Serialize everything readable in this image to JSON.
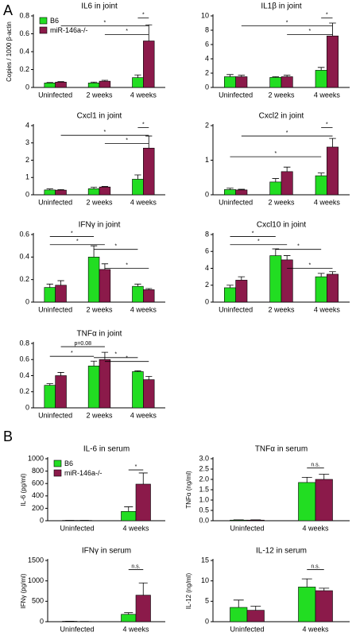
{
  "panel_labels": [
    "A",
    "B"
  ],
  "chart_data": [
    {
      "type": "bar",
      "title": "IL6 in joint",
      "y_label": "Copies / 1000 β-actin",
      "legend": true,
      "categories": [
        "Uninfected",
        "2 weeks",
        "4 weeks"
      ],
      "series": [
        {
          "name": "B6",
          "color": "#22dd22",
          "values": [
            0.05,
            0.05,
            0.11
          ],
          "errors": [
            0.005,
            0.01,
            0.03
          ]
        },
        {
          "name": "miR-146a-/-",
          "color": "#8b1a4a",
          "values": [
            0.06,
            0.07,
            0.52
          ],
          "errors": [
            0.005,
            0.01,
            0.18
          ]
        }
      ],
      "ylim": [
        0,
        0.8
      ],
      "yticks": [
        0,
        0.2,
        0.4,
        0.6,
        0.8
      ],
      "annotations": [
        "*",
        "*",
        "*"
      ]
    },
    {
      "type": "bar",
      "title": "IL1β in joint",
      "categories": [
        "Uninfected",
        "2 weeks",
        "4 weeks"
      ],
      "series": [
        {
          "color": "#22dd22",
          "values": [
            1.5,
            1.4,
            2.4
          ],
          "errors": [
            0.3,
            0.1,
            0.4
          ]
        },
        {
          "color": "#8b1a4a",
          "values": [
            1.5,
            1.5,
            7.2
          ],
          "errors": [
            0.2,
            0.2,
            1.8
          ]
        }
      ],
      "ylim": [
        0,
        10
      ],
      "yticks": [
        0,
        2,
        4,
        6,
        8,
        10
      ],
      "annotations": [
        "*",
        "*",
        "*"
      ]
    },
    {
      "type": "bar",
      "title": "Cxcl1 in joint",
      "categories": [
        "Uninfected",
        "2 weeks",
        "4 weeks"
      ],
      "series": [
        {
          "color": "#22dd22",
          "values": [
            0.28,
            0.35,
            0.9
          ],
          "errors": [
            0.06,
            0.08,
            0.25
          ]
        },
        {
          "color": "#8b1a4a",
          "values": [
            0.27,
            0.45,
            2.7
          ],
          "errors": [
            0.03,
            0.03,
            0.7
          ]
        }
      ],
      "ylim": [
        0,
        4
      ],
      "yticks": [
        0,
        1,
        2,
        3,
        4
      ],
      "annotations": [
        "*",
        "*",
        "*"
      ]
    },
    {
      "type": "bar",
      "title": "Cxcl2 in joint",
      "categories": [
        "Uninfected",
        "2 weeks",
        "4 weeks"
      ],
      "series": [
        {
          "color": "#22dd22",
          "values": [
            0.15,
            0.37,
            0.55
          ],
          "errors": [
            0.04,
            0.1,
            0.08
          ]
        },
        {
          "color": "#8b1a4a",
          "values": [
            0.14,
            0.67,
            1.38
          ],
          "errors": [
            0.02,
            0.13,
            0.25
          ]
        }
      ],
      "ylim": [
        0,
        2
      ],
      "yticks": [
        0,
        1,
        2
      ],
      "annotations": [
        "*",
        "*",
        "*"
      ]
    },
    {
      "type": "bar",
      "title": "IFNγ in joint",
      "categories": [
        "Uninfected",
        "2 weeks",
        "4 weeks"
      ],
      "series": [
        {
          "color": "#22dd22",
          "values": [
            0.13,
            0.4,
            0.14
          ],
          "errors": [
            0.03,
            0.1,
            0.02
          ]
        },
        {
          "color": "#8b1a4a",
          "values": [
            0.15,
            0.29,
            0.11
          ],
          "errors": [
            0.04,
            0.05,
            0.01
          ]
        }
      ],
      "ylim": [
        0,
        0.6
      ],
      "yticks": [
        0,
        0.2,
        0.4,
        0.6
      ],
      "annotations": [
        "*",
        "*",
        "*",
        "*"
      ]
    },
    {
      "type": "bar",
      "title": "Cxcl10 in joint",
      "categories": [
        "Uninfected",
        "2 weeks",
        "4 weeks"
      ],
      "series": [
        {
          "color": "#22dd22",
          "values": [
            1.7,
            5.5,
            3.0
          ],
          "errors": [
            0.3,
            0.8,
            0.4
          ]
        },
        {
          "color": "#8b1a4a",
          "values": [
            2.6,
            5.0,
            3.3
          ],
          "errors": [
            0.4,
            0.5,
            0.3
          ]
        }
      ],
      "ylim": [
        0,
        8
      ],
      "yticks": [
        0,
        2,
        4,
        6,
        8
      ],
      "annotations": [
        "*",
        "*",
        "*",
        "*"
      ]
    },
    {
      "type": "bar",
      "title": "TNFα in joint",
      "categories": [
        "Uninfected",
        "2 weeks",
        "4 weeks"
      ],
      "series": [
        {
          "color": "#22dd22",
          "values": [
            0.28,
            0.52,
            0.45
          ],
          "errors": [
            0.02,
            0.06,
            0.01
          ]
        },
        {
          "color": "#8b1a4a",
          "values": [
            0.4,
            0.6,
            0.35
          ],
          "errors": [
            0.04,
            0.09,
            0.04
          ]
        }
      ],
      "ylim": [
        0,
        0.8
      ],
      "yticks": [
        0,
        0.2,
        0.4,
        0.6,
        0.8
      ],
      "annotations": [
        "*",
        "p=0.08",
        "*",
        "*"
      ]
    },
    {
      "type": "bar",
      "title": "IL-6 in serum",
      "y_label": "IL-6 (pg/ml)",
      "legend": true,
      "categories": [
        "Uninfected",
        "4 weeks"
      ],
      "series": [
        {
          "name": "B6",
          "color": "#22dd22",
          "values": [
            5,
            150
          ],
          "errors": [
            0,
            75
          ]
        },
        {
          "name": "miR-146a-/-",
          "color": "#8b1a4a",
          "values": [
            5,
            590
          ],
          "errors": [
            0,
            180
          ]
        }
      ],
      "ylim": [
        0,
        1000
      ],
      "yticks": [
        0,
        200,
        400,
        600,
        800,
        1000
      ],
      "annotations": [
        "*"
      ]
    },
    {
      "type": "bar",
      "title": "TNFα in serum",
      "y_label": "TNFα (ng/ml)",
      "categories": [
        "Uninfected",
        "4 weeks"
      ],
      "series": [
        {
          "color": "#22dd22",
          "values": [
            0.03,
            1.85
          ],
          "errors": [
            0.01,
            0.25
          ]
        },
        {
          "color": "#8b1a4a",
          "values": [
            0.03,
            2.0
          ],
          "errors": [
            0.01,
            0.25
          ]
        }
      ],
      "ylim": [
        0,
        3
      ],
      "yticks": [
        {
          "value": 0,
          "label": "0.0"
        },
        0.5,
        {
          "value": 1,
          "label": "1.0"
        },
        1.5,
        {
          "value": 2,
          "label": "2.0"
        },
        2.5,
        {
          "value": 3,
          "label": "3.0"
        }
      ],
      "annotations": [
        "n.s."
      ]
    },
    {
      "type": "bar",
      "title": "IFNγ in serum",
      "y_label": "IFNγ (pg/ml)",
      "categories": [
        "Uninfected",
        "4 weeks"
      ],
      "series": [
        {
          "color": "#22dd22",
          "values": [
            10,
            180
          ],
          "errors": [
            0,
            40
          ]
        },
        {
          "color": "#8b1a4a",
          "values": [
            5,
            650
          ],
          "errors": [
            0,
            300
          ]
        }
      ],
      "ylim": [
        0,
        1500
      ],
      "yticks": [
        0,
        500,
        1000,
        1500
      ],
      "annotations": [
        "n.s."
      ]
    },
    {
      "type": "bar",
      "title": "IL-12 in serum",
      "y_label": "IL-12 (ng/ml)",
      "categories": [
        "Uninfected",
        "4 weeks"
      ],
      "series": [
        {
          "color": "#22dd22",
          "values": [
            3.5,
            8.5
          ],
          "errors": [
            1.8,
            2
          ]
        },
        {
          "color": "#8b1a4a",
          "values": [
            2.8,
            7.6
          ],
          "errors": [
            1,
            0.6
          ]
        }
      ],
      "ylim": [
        0,
        15
      ],
      "yticks": [
        0,
        5,
        10,
        15
      ],
      "annotations": [
        "n.s."
      ]
    }
  ]
}
